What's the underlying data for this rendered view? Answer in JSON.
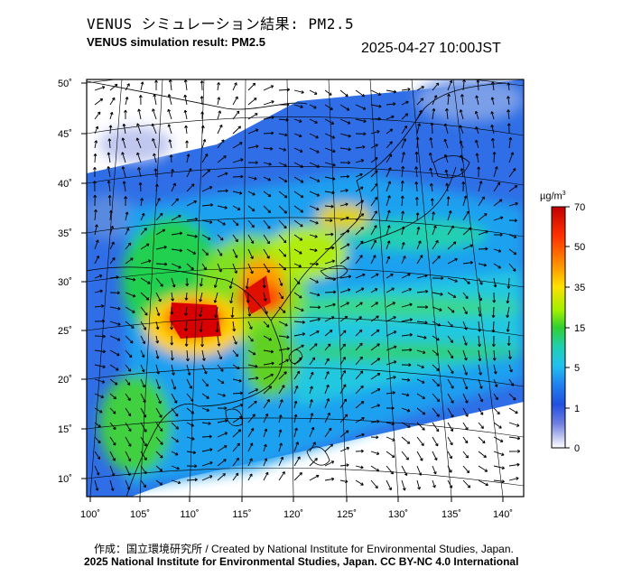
{
  "title": {
    "japanese": "VENUS シミュレーション結果: PM2.5",
    "english": "VENUS simulation result: PM2.5",
    "timestamp": "2025-04-27 10:00JST"
  },
  "map": {
    "lat_labels": [
      "50˚",
      "45˚",
      "40˚",
      "35˚",
      "30˚",
      "25˚",
      "20˚",
      "15˚",
      "10˚"
    ],
    "lon_labels": [
      "100˚",
      "105˚",
      "110˚",
      "115˚",
      "120˚",
      "125˚",
      "130˚",
      "135˚",
      "140˚"
    ],
    "variable": "PM2.5 concentration with wind vectors"
  },
  "colorbar": {
    "unit": "µg/m",
    "unit_sup": "3",
    "ticks": [
      "70",
      "50",
      "35",
      "15",
      "5",
      "1",
      "0"
    ],
    "colors": [
      "#d00000",
      "#ff4000",
      "#ffa000",
      "#ffe000",
      "#c8f000",
      "#60e000",
      "#20c840",
      "#20d0a0",
      "#20c8e8",
      "#2090f0",
      "#2050e0",
      "#4060e0",
      "#8090e8",
      "#c0c8f0",
      "#ffffff"
    ]
  },
  "credits": {
    "line1": "作成：国立環境研究所 / Created by National Institute for Environmental Studies, Japan.",
    "line2": "2025 National Institute for Environmental Studies, Japan. CC BY-NC 4.0 International"
  }
}
